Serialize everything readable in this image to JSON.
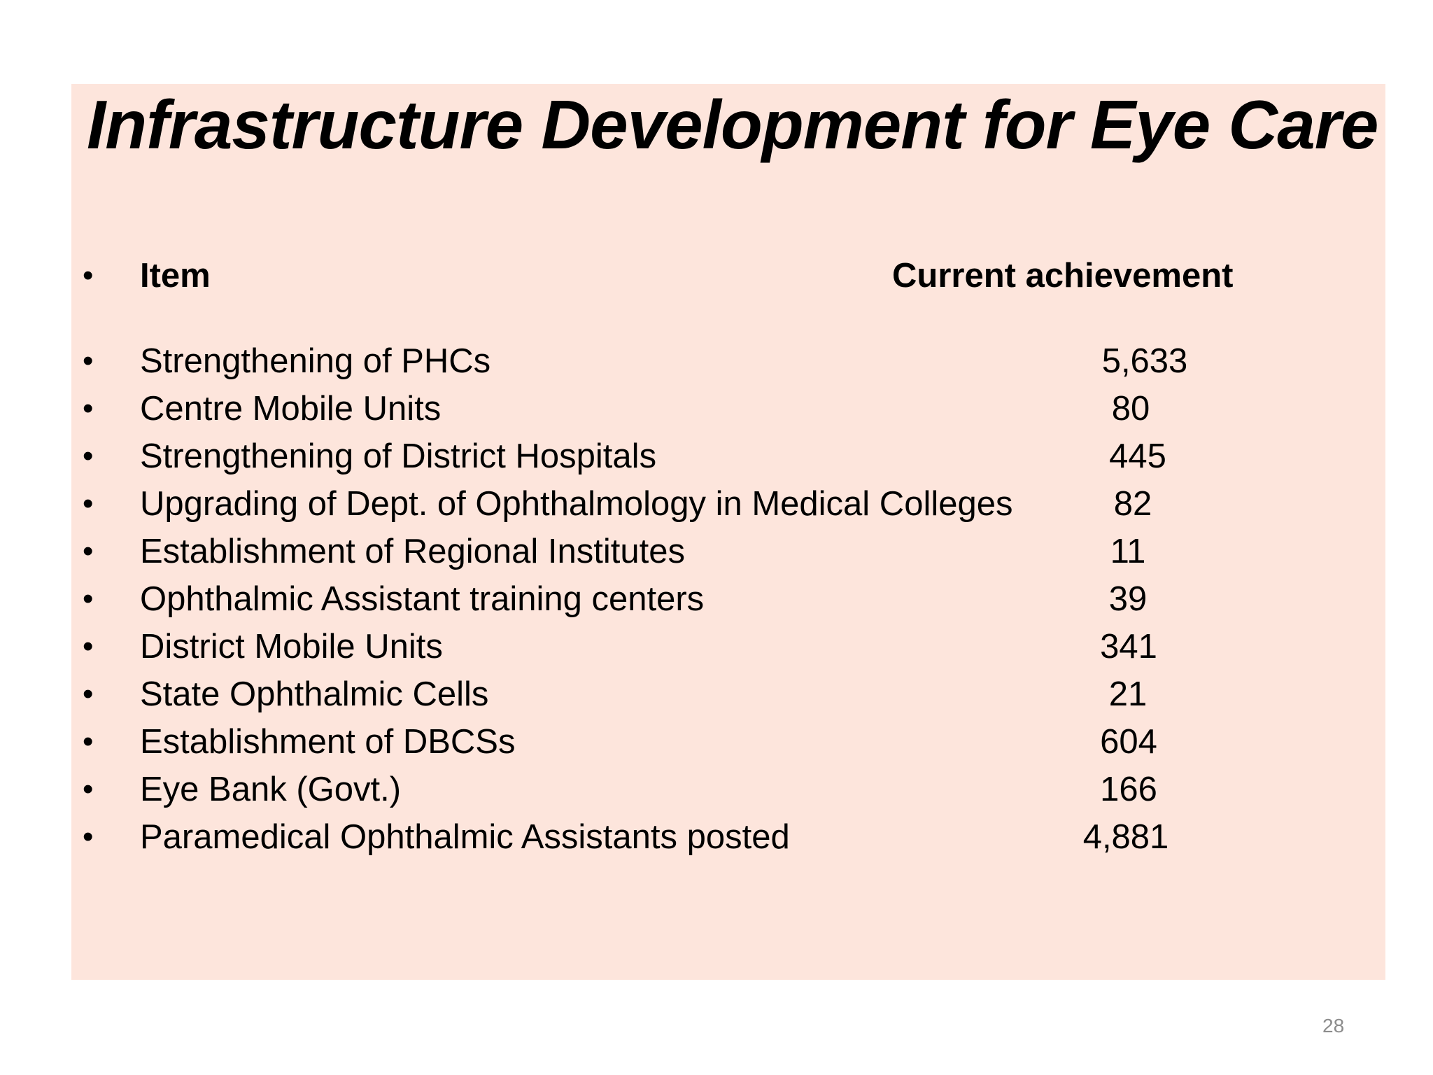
{
  "slide": {
    "title": "Infrastructure Development for Eye Care",
    "page_number": "28",
    "colors": {
      "panel_background": "#fde5dc",
      "text": "#000000",
      "page_number": "#8c8c8c"
    }
  },
  "table": {
    "header": {
      "item": "Item",
      "achievement": "Current achievement"
    },
    "rows": [
      {
        "item": "Strengthening of PHCs",
        "value": "5,633"
      },
      {
        "item": "Centre Mobile Units",
        "value": "80"
      },
      {
        "item": "Strengthening of District Hospitals",
        "value": "445"
      },
      {
        "item": "Upgrading of Dept. of Ophthalmology in Medical Colleges",
        "value": "82"
      },
      {
        "item": "Establishment of Regional Institutes",
        "value": "11"
      },
      {
        "item": "Ophthalmic Assistant training centers",
        "value": "39"
      },
      {
        "item": "District Mobile Units",
        "value": "341"
      },
      {
        "item": "State Ophthalmic Cells",
        "value": "21"
      },
      {
        "item": "Establishment of DBCSs",
        "value": "604"
      },
      {
        "item": "Eye Bank (Govt.)",
        "value": "166"
      },
      {
        "item": "Paramedical Ophthalmic Assistants posted",
        "value": "4,881"
      }
    ]
  }
}
